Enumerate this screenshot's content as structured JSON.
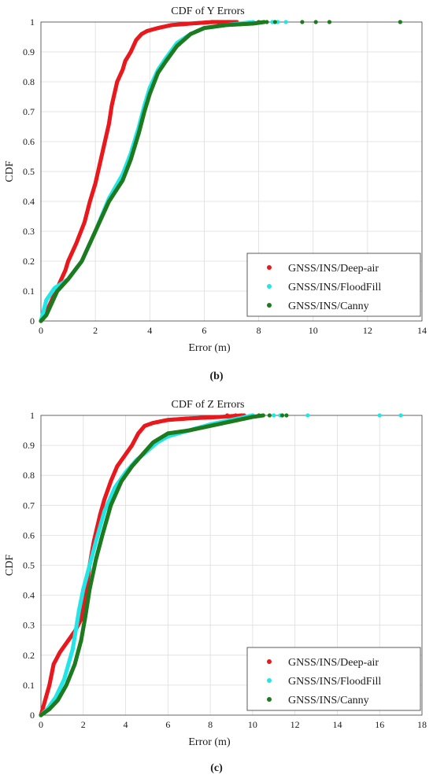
{
  "chart_data": [
    {
      "type": "scatter",
      "title": "CDF of Y Errors",
      "xlabel": "Error (m)",
      "ylabel": "CDF",
      "caption": "(b)",
      "xlim": [
        0,
        14
      ],
      "ylim": [
        0,
        1
      ],
      "xticks": [
        "0",
        "2",
        "4",
        "6",
        "8",
        "10",
        "12",
        "14"
      ],
      "yticks": [
        "0",
        "0.1",
        "0.2",
        "0.3",
        "0.4",
        "0.5",
        "0.6",
        "0.7",
        "0.8",
        "0.9",
        "1"
      ],
      "grid": true,
      "legend_position": "bottom-right",
      "series": [
        {
          "name": "GNSS/INS/Deep-air",
          "color": "#e8191d",
          "points": [
            [
              0,
              0
            ],
            [
              0.3,
              0.05
            ],
            [
              0.6,
              0.11
            ],
            [
              0.9,
              0.17
            ],
            [
              1.0,
              0.2
            ],
            [
              1.3,
              0.26
            ],
            [
              1.6,
              0.33
            ],
            [
              1.8,
              0.4
            ],
            [
              2.0,
              0.46
            ],
            [
              2.1,
              0.5
            ],
            [
              2.3,
              0.58
            ],
            [
              2.5,
              0.66
            ],
            [
              2.6,
              0.72
            ],
            [
              2.8,
              0.8
            ],
            [
              3.0,
              0.84
            ],
            [
              3.1,
              0.87
            ],
            [
              3.3,
              0.9
            ],
            [
              3.5,
              0.94
            ],
            [
              3.7,
              0.96
            ],
            [
              3.9,
              0.97
            ],
            [
              4.3,
              0.98
            ],
            [
              4.8,
              0.99
            ],
            [
              5.5,
              0.995
            ],
            [
              6.3,
              1.0
            ],
            [
              7.2,
              1.0
            ]
          ],
          "outliers": [
            6.3,
            6.5,
            6.7,
            6.9
          ]
        },
        {
          "name": "GNSS/INS/FloodFill",
          "color": "#22e6e6",
          "points": [
            [
              0,
              0
            ],
            [
              0.2,
              0.07
            ],
            [
              0.5,
              0.11
            ],
            [
              1.0,
              0.14
            ],
            [
              1.5,
              0.2
            ],
            [
              2.0,
              0.3
            ],
            [
              2.5,
              0.41
            ],
            [
              3.0,
              0.49
            ],
            [
              3.3,
              0.56
            ],
            [
              3.6,
              0.65
            ],
            [
              3.8,
              0.72
            ],
            [
              4.0,
              0.78
            ],
            [
              4.3,
              0.84
            ],
            [
              4.6,
              0.88
            ],
            [
              5.0,
              0.93
            ],
            [
              5.5,
              0.96
            ],
            [
              6.0,
              0.98
            ],
            [
              6.8,
              0.99
            ],
            [
              7.8,
              1.0
            ]
          ],
          "outliers": [
            8.5,
            8.7,
            9.0
          ]
        },
        {
          "name": "GNSS/INS/Canny",
          "color": "#1e7a1e",
          "points": [
            [
              0,
              0
            ],
            [
              0.2,
              0.02
            ],
            [
              0.4,
              0.06
            ],
            [
              0.6,
              0.1
            ],
            [
              1.0,
              0.14
            ],
            [
              1.5,
              0.2
            ],
            [
              2.0,
              0.3
            ],
            [
              2.5,
              0.4
            ],
            [
              3.0,
              0.47
            ],
            [
              3.3,
              0.54
            ],
            [
              3.6,
              0.63
            ],
            [
              3.8,
              0.7
            ],
            [
              4.0,
              0.76
            ],
            [
              4.3,
              0.83
            ],
            [
              4.6,
              0.87
            ],
            [
              5.0,
              0.92
            ],
            [
              5.5,
              0.96
            ],
            [
              6.0,
              0.98
            ],
            [
              6.8,
              0.99
            ],
            [
              7.8,
              0.995
            ],
            [
              8.2,
              1.0
            ]
          ],
          "outliers": [
            8.0,
            8.3,
            8.6,
            9.6,
            10.1,
            10.6,
            13.2
          ]
        }
      ]
    },
    {
      "type": "scatter",
      "title": "CDF of Z Errors",
      "xlabel": "Error (m)",
      "ylabel": "CDF",
      "caption": "(c)",
      "xlim": [
        0,
        18
      ],
      "ylim": [
        0,
        1
      ],
      "xticks": [
        "0",
        "2",
        "4",
        "6",
        "8",
        "10",
        "12",
        "14",
        "16",
        "18"
      ],
      "yticks": [
        "0",
        "0.1",
        "0.2",
        "0.3",
        "0.4",
        "0.5",
        "0.6",
        "0.7",
        "0.8",
        "0.9",
        "1"
      ],
      "grid": true,
      "legend_position": "bottom-right",
      "series": [
        {
          "name": "GNSS/INS/Deep-air",
          "color": "#e8191d",
          "points": [
            [
              0,
              0
            ],
            [
              0.2,
              0.05
            ],
            [
              0.4,
              0.1
            ],
            [
              0.6,
              0.17
            ],
            [
              0.9,
              0.21
            ],
            [
              1.2,
              0.24
            ],
            [
              1.6,
              0.28
            ],
            [
              1.9,
              0.32
            ],
            [
              2.1,
              0.4
            ],
            [
              2.3,
              0.5
            ],
            [
              2.5,
              0.58
            ],
            [
              2.8,
              0.67
            ],
            [
              3.0,
              0.72
            ],
            [
              3.3,
              0.78
            ],
            [
              3.6,
              0.83
            ],
            [
              4.0,
              0.87
            ],
            [
              4.3,
              0.9
            ],
            [
              4.6,
              0.94
            ],
            [
              4.9,
              0.965
            ],
            [
              5.3,
              0.975
            ],
            [
              6.0,
              0.985
            ],
            [
              7.0,
              0.99
            ],
            [
              8.5,
              0.995
            ],
            [
              9.5,
              1.0
            ]
          ],
          "outliers": [
            8.8,
            9.2,
            9.6,
            10.0
          ]
        },
        {
          "name": "GNSS/INS/FloodFill",
          "color": "#22e6e6",
          "points": [
            [
              0,
              0
            ],
            [
              0.3,
              0.02
            ],
            [
              0.7,
              0.06
            ],
            [
              1.1,
              0.12
            ],
            [
              1.5,
              0.22
            ],
            [
              1.8,
              0.35
            ],
            [
              2.0,
              0.42
            ],
            [
              2.3,
              0.5
            ],
            [
              2.6,
              0.58
            ],
            [
              3.0,
              0.68
            ],
            [
              3.5,
              0.76
            ],
            [
              4.0,
              0.81
            ],
            [
              4.5,
              0.85
            ],
            [
              5.0,
              0.88
            ],
            [
              5.5,
              0.91
            ],
            [
              6.0,
              0.93
            ],
            [
              7.0,
              0.95
            ],
            [
              8.0,
              0.97
            ],
            [
              9.0,
              0.985
            ],
            [
              10.0,
              1.0
            ]
          ],
          "outliers": [
            11.0,
            11.3,
            12.6,
            16.0,
            17.0
          ]
        },
        {
          "name": "GNSS/INS/Canny",
          "color": "#1e7a1e",
          "points": [
            [
              0,
              0
            ],
            [
              0.4,
              0.02
            ],
            [
              0.8,
              0.05
            ],
            [
              1.2,
              0.1
            ],
            [
              1.6,
              0.17
            ],
            [
              1.9,
              0.25
            ],
            [
              2.1,
              0.33
            ],
            [
              2.3,
              0.42
            ],
            [
              2.6,
              0.52
            ],
            [
              2.9,
              0.6
            ],
            [
              3.3,
              0.7
            ],
            [
              3.8,
              0.78
            ],
            [
              4.3,
              0.83
            ],
            [
              4.8,
              0.87
            ],
            [
              5.3,
              0.91
            ],
            [
              6.0,
              0.94
            ],
            [
              7.0,
              0.95
            ],
            [
              8.0,
              0.965
            ],
            [
              9.0,
              0.98
            ],
            [
              10.0,
              0.995
            ],
            [
              10.5,
              1.0
            ]
          ],
          "outliers": [
            10.3,
            10.8,
            11.4,
            11.6
          ]
        }
      ]
    }
  ]
}
